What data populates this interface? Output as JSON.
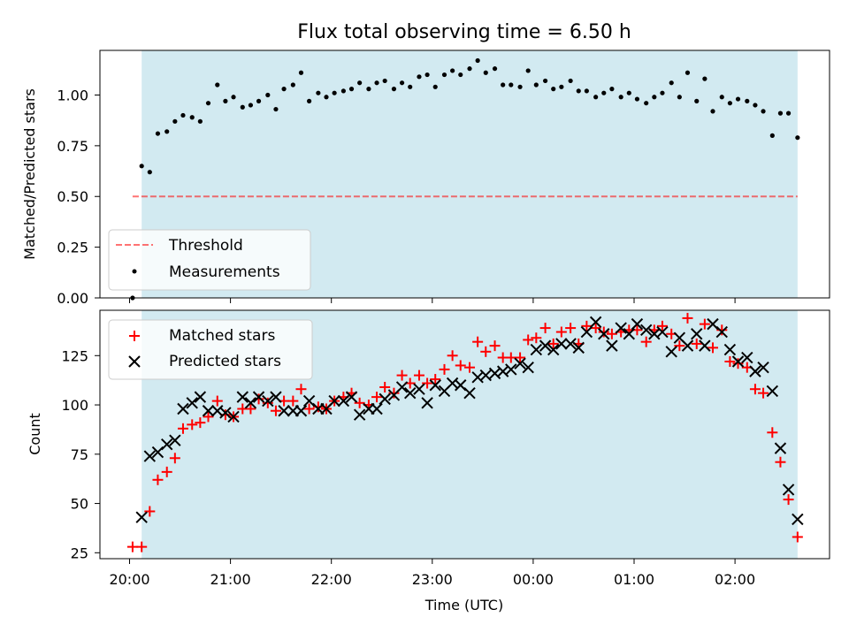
{
  "title": "Flux total observing time = 6.50 h",
  "xlabel": "Time (UTC)",
  "x_ticks": [
    "20:00",
    "21:00",
    "22:00",
    "23:00",
    "00:00",
    "01:00",
    "02:00"
  ],
  "colors": {
    "shade": "#add8e6",
    "threshold": "#ff0000",
    "measurement": "#000000",
    "matched": "#ff0000",
    "predicted": "#000000"
  },
  "chart_data": [
    {
      "type": "scatter",
      "panel": "top",
      "ylabel": "Matched/Predicted stars",
      "ylim": [
        0,
        1.22
      ],
      "y_ticks": [
        "0.00",
        "0.25",
        "0.50",
        "0.75",
        "1.00"
      ],
      "x_unit": "hours since 20:00 UTC",
      "observing_window": [
        0.12,
        6.62
      ],
      "threshold": {
        "name": "Threshold",
        "value": 0.5,
        "x_range": [
          0.03,
          6.62
        ]
      },
      "legend": {
        "placement": "lower-left",
        "entries": [
          "Threshold",
          "Measurements"
        ]
      },
      "series": [
        {
          "name": "Measurements",
          "points": [
            [
              0.03,
              0.0
            ],
            [
              0.12,
              0.65
            ],
            [
              0.2,
              0.62
            ],
            [
              0.28,
              0.81
            ],
            [
              0.37,
              0.82
            ],
            [
              0.45,
              0.87
            ],
            [
              0.53,
              0.9
            ],
            [
              0.62,
              0.89
            ],
            [
              0.7,
              0.87
            ],
            [
              0.78,
              0.96
            ],
            [
              0.87,
              1.05
            ],
            [
              0.95,
              0.97
            ],
            [
              1.03,
              0.99
            ],
            [
              1.12,
              0.94
            ],
            [
              1.2,
              0.95
            ],
            [
              1.28,
              0.97
            ],
            [
              1.37,
              1.0
            ],
            [
              1.45,
              0.93
            ],
            [
              1.53,
              1.03
            ],
            [
              1.62,
              1.05
            ],
            [
              1.7,
              1.11
            ],
            [
              1.78,
              0.97
            ],
            [
              1.87,
              1.01
            ],
            [
              1.95,
              0.99
            ],
            [
              2.03,
              1.01
            ],
            [
              2.12,
              1.02
            ],
            [
              2.2,
              1.03
            ],
            [
              2.28,
              1.06
            ],
            [
              2.37,
              1.03
            ],
            [
              2.45,
              1.06
            ],
            [
              2.53,
              1.07
            ],
            [
              2.62,
              1.03
            ],
            [
              2.7,
              1.06
            ],
            [
              2.78,
              1.04
            ],
            [
              2.87,
              1.09
            ],
            [
              2.95,
              1.1
            ],
            [
              3.03,
              1.04
            ],
            [
              3.12,
              1.1
            ],
            [
              3.2,
              1.12
            ],
            [
              3.28,
              1.1
            ],
            [
              3.37,
              1.13
            ],
            [
              3.45,
              1.17
            ],
            [
              3.53,
              1.11
            ],
            [
              3.62,
              1.13
            ],
            [
              3.7,
              1.05
            ],
            [
              3.78,
              1.05
            ],
            [
              3.87,
              1.04
            ],
            [
              3.95,
              1.12
            ],
            [
              4.03,
              1.05
            ],
            [
              4.12,
              1.07
            ],
            [
              4.2,
              1.03
            ],
            [
              4.28,
              1.04
            ],
            [
              4.37,
              1.07
            ],
            [
              4.45,
              1.02
            ],
            [
              4.53,
              1.02
            ],
            [
              4.62,
              0.99
            ],
            [
              4.7,
              1.01
            ],
            [
              4.78,
              1.03
            ],
            [
              4.87,
              0.99
            ],
            [
              4.95,
              1.01
            ],
            [
              5.03,
              0.98
            ],
            [
              5.12,
              0.96
            ],
            [
              5.2,
              0.99
            ],
            [
              5.28,
              1.01
            ],
            [
              5.37,
              1.06
            ],
            [
              5.45,
              0.99
            ],
            [
              5.53,
              1.11
            ],
            [
              5.62,
              0.97
            ],
            [
              5.7,
              1.08
            ],
            [
              5.78,
              0.92
            ],
            [
              5.87,
              0.99
            ],
            [
              5.95,
              0.96
            ],
            [
              6.03,
              0.98
            ],
            [
              6.12,
              0.97
            ],
            [
              6.2,
              0.95
            ],
            [
              6.28,
              0.92
            ],
            [
              6.37,
              0.8
            ],
            [
              6.45,
              0.91
            ],
            [
              6.53,
              0.91
            ],
            [
              6.62,
              0.79
            ]
          ]
        }
      ]
    },
    {
      "type": "scatter",
      "panel": "bottom",
      "ylabel": "Count",
      "ylim": [
        22,
        148
      ],
      "y_ticks": [
        "25",
        "50",
        "75",
        "100",
        "125"
      ],
      "x_unit": "hours since 20:00 UTC",
      "observing_window": [
        0.12,
        6.62
      ],
      "legend": {
        "placement": "upper-left",
        "entries": [
          "Matched stars",
          "Predicted stars"
        ]
      },
      "series": [
        {
          "name": "Matched stars",
          "marker": "+",
          "points": [
            [
              0.03,
              28
            ],
            [
              0.12,
              28
            ],
            [
              0.2,
              46
            ],
            [
              0.28,
              62
            ],
            [
              0.37,
              66
            ],
            [
              0.45,
              73
            ],
            [
              0.53,
              88
            ],
            [
              0.62,
              90
            ],
            [
              0.7,
              91
            ],
            [
              0.78,
              94
            ],
            [
              0.87,
              102
            ],
            [
              0.95,
              95
            ],
            [
              1.03,
              94
            ],
            [
              1.12,
              98
            ],
            [
              1.2,
              98
            ],
            [
              1.28,
              103
            ],
            [
              1.37,
              101
            ],
            [
              1.45,
              97
            ],
            [
              1.53,
              102
            ],
            [
              1.62,
              102
            ],
            [
              1.7,
              108
            ],
            [
              1.78,
              98
            ],
            [
              1.87,
              99
            ],
            [
              1.95,
              98
            ],
            [
              2.03,
              102
            ],
            [
              2.12,
              104
            ],
            [
              2.2,
              106
            ],
            [
              2.28,
              101
            ],
            [
              2.37,
              100
            ],
            [
              2.45,
              104
            ],
            [
              2.53,
              109
            ],
            [
              2.62,
              106
            ],
            [
              2.7,
              115
            ],
            [
              2.78,
              111
            ],
            [
              2.87,
              115
            ],
            [
              2.95,
              111
            ],
            [
              3.03,
              113
            ],
            [
              3.12,
              118
            ],
            [
              3.2,
              125
            ],
            [
              3.28,
              120
            ],
            [
              3.37,
              119
            ],
            [
              3.45,
              132
            ],
            [
              3.53,
              127
            ],
            [
              3.62,
              130
            ],
            [
              3.7,
              124
            ],
            [
              3.78,
              124
            ],
            [
              3.87,
              124
            ],
            [
              3.95,
              133
            ],
            [
              4.03,
              134
            ],
            [
              4.12,
              139
            ],
            [
              4.2,
              131
            ],
            [
              4.28,
              137
            ],
            [
              4.37,
              139
            ],
            [
              4.45,
              131
            ],
            [
              4.53,
              140
            ],
            [
              4.62,
              139
            ],
            [
              4.7,
              137
            ],
            [
              4.78,
              136
            ],
            [
              4.87,
              137
            ],
            [
              4.95,
              138
            ],
            [
              5.03,
              138
            ],
            [
              5.12,
              132
            ],
            [
              5.2,
              138
            ],
            [
              5.28,
              140
            ],
            [
              5.37,
              136
            ],
            [
              5.45,
              130
            ],
            [
              5.53,
              144
            ],
            [
              5.62,
              131
            ],
            [
              5.7,
              141
            ],
            [
              5.78,
              129
            ],
            [
              5.87,
              138
            ],
            [
              5.95,
              122
            ],
            [
              6.03,
              121
            ],
            [
              6.12,
              119
            ],
            [
              6.2,
              108
            ],
            [
              6.28,
              106
            ],
            [
              6.37,
              86
            ],
            [
              6.45,
              71
            ],
            [
              6.53,
              52
            ],
            [
              6.62,
              33
            ]
          ]
        },
        {
          "name": "Predicted stars",
          "marker": "x",
          "points": [
            [
              0.12,
              43
            ],
            [
              0.2,
              74
            ],
            [
              0.28,
              76
            ],
            [
              0.37,
              80
            ],
            [
              0.45,
              82
            ],
            [
              0.53,
              98
            ],
            [
              0.62,
              101
            ],
            [
              0.7,
              104
            ],
            [
              0.78,
              97
            ],
            [
              0.87,
              97
            ],
            [
              0.95,
              96
            ],
            [
              1.03,
              94
            ],
            [
              1.12,
              104
            ],
            [
              1.2,
              101
            ],
            [
              1.28,
              104
            ],
            [
              1.37,
              102
            ],
            [
              1.45,
              104
            ],
            [
              1.53,
              97
            ],
            [
              1.62,
              97
            ],
            [
              1.7,
              97
            ],
            [
              1.78,
              102
            ],
            [
              1.87,
              98
            ],
            [
              1.95,
              98
            ],
            [
              2.03,
              102
            ],
            [
              2.12,
              102
            ],
            [
              2.2,
              104
            ],
            [
              2.28,
              95
            ],
            [
              2.37,
              98
            ],
            [
              2.45,
              98
            ],
            [
              2.53,
              103
            ],
            [
              2.62,
              105
            ],
            [
              2.7,
              109
            ],
            [
              2.78,
              106
            ],
            [
              2.87,
              108
            ],
            [
              2.95,
              101
            ],
            [
              3.03,
              110
            ],
            [
              3.12,
              107
            ],
            [
              3.2,
              111
            ],
            [
              3.28,
              110
            ],
            [
              3.37,
              106
            ],
            [
              3.45,
              114
            ],
            [
              3.53,
              115
            ],
            [
              3.62,
              116
            ],
            [
              3.7,
              117
            ],
            [
              3.78,
              118
            ],
            [
              3.87,
              121
            ],
            [
              3.95,
              119
            ],
            [
              4.03,
              128
            ],
            [
              4.12,
              130
            ],
            [
              4.2,
              128
            ],
            [
              4.28,
              131
            ],
            [
              4.37,
              131
            ],
            [
              4.45,
              129
            ],
            [
              4.53,
              137
            ],
            [
              4.62,
              142
            ],
            [
              4.7,
              136
            ],
            [
              4.78,
              130
            ],
            [
              4.87,
              139
            ],
            [
              4.95,
              136
            ],
            [
              5.03,
              141
            ],
            [
              5.12,
              138
            ],
            [
              5.2,
              136
            ],
            [
              5.28,
              137
            ],
            [
              5.37,
              127
            ],
            [
              5.45,
              134
            ],
            [
              5.53,
              130
            ],
            [
              5.62,
              136
            ],
            [
              5.7,
              130
            ],
            [
              5.78,
              141
            ],
            [
              5.87,
              137
            ],
            [
              5.95,
              128
            ],
            [
              6.03,
              122
            ],
            [
              6.12,
              124
            ],
            [
              6.2,
              117
            ],
            [
              6.28,
              119
            ],
            [
              6.37,
              107
            ],
            [
              6.45,
              78
            ],
            [
              6.53,
              57
            ],
            [
              6.62,
              42
            ]
          ]
        }
      ]
    }
  ]
}
